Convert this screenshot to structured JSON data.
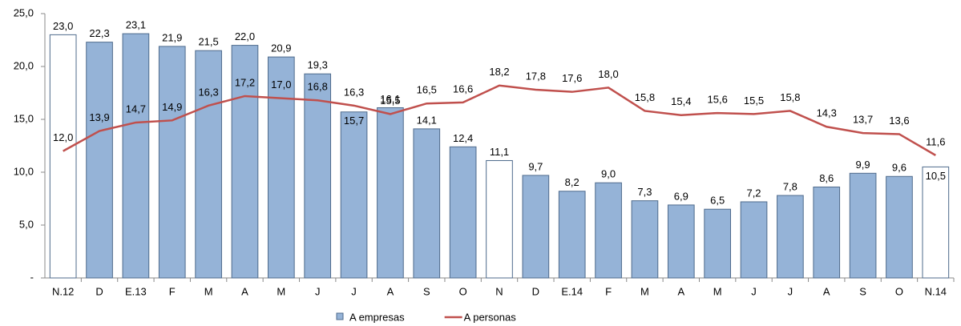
{
  "chart_data": {
    "type": "bar-line",
    "categories": [
      "N.12",
      "D",
      "E.13",
      "F",
      "M",
      "A",
      "M",
      "J",
      "J",
      "A",
      "S",
      "O",
      "N",
      "D",
      "E.14",
      "F",
      "M",
      "A",
      "M",
      "J",
      "J",
      "A",
      "S",
      "O",
      "N.14"
    ],
    "series": [
      {
        "name": "A empresas",
        "type": "bar",
        "color": "#95b3d7",
        "colors": [
          "#ffffff",
          "#95b3d7",
          "#95b3d7",
          "#95b3d7",
          "#95b3d7",
          "#95b3d7",
          "#95b3d7",
          "#95b3d7",
          "#95b3d7",
          "#95b3d7",
          "#95b3d7",
          "#95b3d7",
          "#ffffff",
          "#95b3d7",
          "#95b3d7",
          "#95b3d7",
          "#95b3d7",
          "#95b3d7",
          "#95b3d7",
          "#95b3d7",
          "#95b3d7",
          "#95b3d7",
          "#95b3d7",
          "#95b3d7",
          "#ffffff"
        ],
        "values": [
          23.0,
          22.3,
          23.1,
          21.9,
          21.5,
          22.0,
          20.9,
          19.3,
          15.7,
          16.1,
          14.1,
          12.4,
          11.1,
          9.7,
          8.2,
          9.0,
          7.3,
          6.9,
          6.5,
          7.2,
          7.8,
          8.6,
          9.9,
          9.6,
          10.5
        ],
        "value_labels": [
          "23,0",
          "22,3",
          "23,1",
          "21,9",
          "21,5",
          "22,0",
          "20,9",
          "19,3",
          "15,7",
          "16,1",
          "14,1",
          "12,4",
          "11,1",
          "9,7",
          "8,2",
          "9,0",
          "7,3",
          "6,9",
          "6,5",
          "7,2",
          "7,8",
          "8,6",
          "9,9",
          "9,6",
          "10,5"
        ]
      },
      {
        "name": "A personas",
        "type": "line",
        "color": "#c0504d",
        "values": [
          12.0,
          13.9,
          14.7,
          14.9,
          16.3,
          17.2,
          17.0,
          16.8,
          16.3,
          15.5,
          16.5,
          16.6,
          18.2,
          17.8,
          17.6,
          18.0,
          15.8,
          15.4,
          15.6,
          15.5,
          15.8,
          14.3,
          13.7,
          13.6,
          11.6
        ],
        "value_labels": [
          "12,0",
          "13,9",
          "14,7",
          "14,9",
          "16,3",
          "17,2",
          "17,0",
          "16,8",
          "16,3",
          "15,5",
          "16,5",
          "16,6",
          "18,2",
          "17,8",
          "17,6",
          "18,0",
          "15,8",
          "15,4",
          "15,6",
          "15,5",
          "15,8",
          "14,3",
          "13,7",
          "13,6",
          "11,6"
        ]
      }
    ],
    "ylim": [
      0,
      25
    ],
    "yticks": [
      {
        "value": 0,
        "label": "-"
      },
      {
        "value": 5,
        "label": "5,0"
      },
      {
        "value": 10,
        "label": "10,0"
      },
      {
        "value": 15,
        "label": "15,0"
      },
      {
        "value": 20,
        "label": "20,0"
      },
      {
        "value": 25,
        "label": "25,0"
      }
    ],
    "legend": "bottom"
  }
}
